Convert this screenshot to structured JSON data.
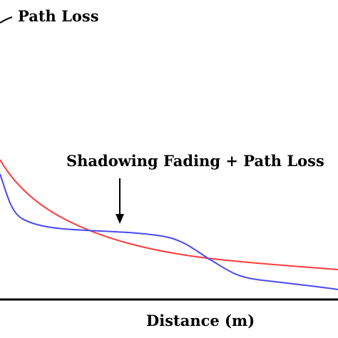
{
  "legend": {
    "path_loss_label": "Path Loss"
  },
  "annotation": {
    "text": "Shadowing Fading + Path Loss"
  },
  "axes": {
    "x_label": "Distance (m)"
  },
  "colors": {
    "path_loss_curve": "#ff3b3b",
    "shadowing_curve": "#4a4af2",
    "axis": "#000000",
    "text": "#000000"
  }
}
